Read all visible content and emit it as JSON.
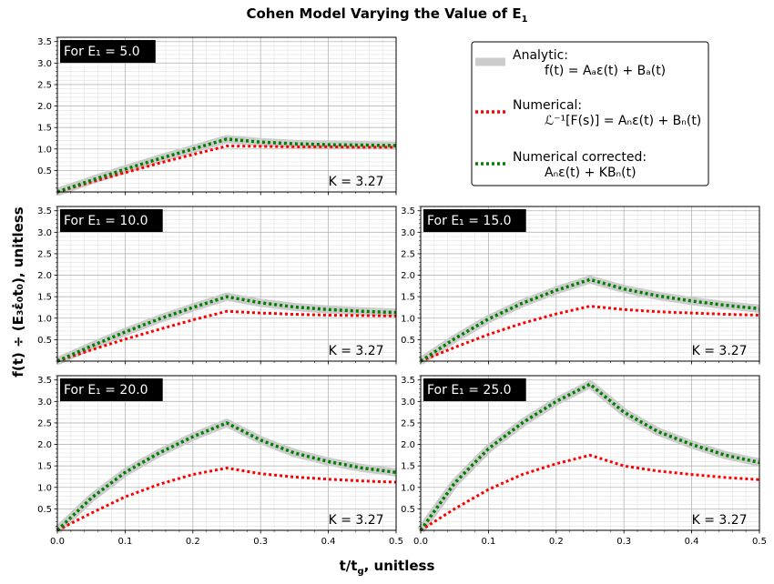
{
  "title": {
    "main": "Cohen Model Varying the Value of E",
    "sub": "1"
  },
  "xlabel": {
    "a": "t/t",
    "sub": "g",
    "b": ", unitless"
  },
  "ylabel": {
    "text": "f(t) ÷ (E₃ε̇₀t₀), unitless"
  },
  "legend": [
    {
      "name": "Analytic:",
      "formula": "f(t) = Aₐε(t) + Bₐ(t)",
      "color": "#cccccc",
      "style": "solid"
    },
    {
      "name": "Numerical:",
      "formula": "ℒ⁻¹[F(s)] = Aₙε(t) + Bₙ(t)",
      "color": "#ff0000",
      "style": "dotted"
    },
    {
      "name": "Numerical corrected:",
      "formula": "Aₙε(t) + KBₙ(t)",
      "color": "#008000",
      "style": "dotted"
    }
  ],
  "chart_data": [
    {
      "type": "line",
      "panel_label": "For E₁ = 5.0",
      "k_label": "K = 3.27",
      "x": [
        0,
        0.25,
        0.5
      ],
      "xlim": [
        0,
        0.5
      ],
      "ylim": [
        0,
        3.6
      ],
      "xticks": [
        "0.0",
        "0.1",
        "0.2",
        "0.3",
        "0.4",
        "0.5"
      ],
      "yticks": [
        "0.5",
        "1.0",
        "1.5",
        "2.0",
        "2.5",
        "3.0",
        "3.5"
      ],
      "series": [
        {
          "name": "Analytic",
          "x": [
            0,
            0.05,
            0.1,
            0.15,
            0.2,
            0.25,
            0.3,
            0.35,
            0.4,
            0.45,
            0.5
          ],
          "values": [
            0,
            0.27,
            0.53,
            0.77,
            1.0,
            1.23,
            1.16,
            1.12,
            1.1,
            1.09,
            1.08
          ]
        },
        {
          "name": "Numerical",
          "x": [
            0,
            0.05,
            0.1,
            0.15,
            0.2,
            0.25,
            0.3,
            0.35,
            0.4,
            0.45,
            0.5
          ],
          "values": [
            0,
            0.23,
            0.45,
            0.67,
            0.87,
            1.07,
            1.06,
            1.05,
            1.05,
            1.04,
            1.04
          ]
        },
        {
          "name": "Numerical corrected",
          "x": [
            0,
            0.05,
            0.1,
            0.15,
            0.2,
            0.25,
            0.3,
            0.35,
            0.4,
            0.45,
            0.5
          ],
          "values": [
            0,
            0.27,
            0.53,
            0.77,
            1.0,
            1.23,
            1.16,
            1.12,
            1.1,
            1.09,
            1.08
          ]
        }
      ]
    },
    {
      "type": "line",
      "panel_label": "For E₁ = 10.0",
      "k_label": "K = 3.27",
      "xlim": [
        0,
        0.5
      ],
      "ylim": [
        0,
        3.6
      ],
      "xticks": [
        "0.0",
        "0.1",
        "0.2",
        "0.3",
        "0.4",
        "0.5"
      ],
      "yticks": [
        "0.5",
        "1.0",
        "1.5",
        "2.0",
        "2.5",
        "3.0",
        "3.5"
      ],
      "series": [
        {
          "name": "Analytic",
          "x": [
            0,
            0.05,
            0.1,
            0.15,
            0.2,
            0.25,
            0.3,
            0.35,
            0.4,
            0.45,
            0.5
          ],
          "values": [
            0,
            0.35,
            0.68,
            0.98,
            1.25,
            1.5,
            1.36,
            1.26,
            1.2,
            1.16,
            1.13
          ]
        },
        {
          "name": "Numerical",
          "x": [
            0,
            0.05,
            0.1,
            0.15,
            0.2,
            0.25,
            0.3,
            0.35,
            0.4,
            0.45,
            0.5
          ],
          "values": [
            0,
            0.26,
            0.51,
            0.74,
            0.96,
            1.16,
            1.12,
            1.09,
            1.07,
            1.06,
            1.05
          ]
        },
        {
          "name": "Numerical corrected",
          "x": [
            0,
            0.05,
            0.1,
            0.15,
            0.2,
            0.25,
            0.3,
            0.35,
            0.4,
            0.45,
            0.5
          ],
          "values": [
            0,
            0.35,
            0.68,
            0.98,
            1.25,
            1.5,
            1.36,
            1.26,
            1.2,
            1.16,
            1.13
          ]
        }
      ]
    },
    {
      "type": "line",
      "panel_label": "For E₁ = 15.0",
      "k_label": "K = 3.27",
      "xlim": [
        0,
        0.5
      ],
      "ylim": [
        0,
        3.6
      ],
      "xticks": [
        "0.0",
        "0.1",
        "0.2",
        "0.3",
        "0.4",
        "0.5"
      ],
      "yticks": [
        "0.5",
        "1.0",
        "1.5",
        "2.0",
        "2.5",
        "3.0",
        "3.5"
      ],
      "series": [
        {
          "name": "Analytic",
          "x": [
            0,
            0.05,
            0.1,
            0.15,
            0.2,
            0.25,
            0.3,
            0.35,
            0.4,
            0.45,
            0.5
          ],
          "values": [
            0,
            0.52,
            0.98,
            1.35,
            1.65,
            1.9,
            1.68,
            1.52,
            1.4,
            1.3,
            1.22
          ]
        },
        {
          "name": "Numerical",
          "x": [
            0,
            0.05,
            0.1,
            0.15,
            0.2,
            0.25,
            0.3,
            0.35,
            0.4,
            0.45,
            0.5
          ],
          "values": [
            0,
            0.32,
            0.62,
            0.88,
            1.1,
            1.28,
            1.2,
            1.15,
            1.12,
            1.09,
            1.07
          ]
        },
        {
          "name": "Numerical corrected",
          "x": [
            0,
            0.05,
            0.1,
            0.15,
            0.2,
            0.25,
            0.3,
            0.35,
            0.4,
            0.45,
            0.5
          ],
          "values": [
            0,
            0.52,
            0.98,
            1.35,
            1.65,
            1.9,
            1.68,
            1.52,
            1.4,
            1.3,
            1.22
          ]
        }
      ]
    },
    {
      "type": "line",
      "panel_label": "For E₁ = 20.0",
      "k_label": "K = 3.27",
      "xlim": [
        0,
        0.5
      ],
      "ylim": [
        0,
        3.6
      ],
      "xticks": [
        "0.0",
        "0.1",
        "0.2",
        "0.3",
        "0.4",
        "0.5"
      ],
      "yticks": [
        "0.5",
        "1.0",
        "1.5",
        "2.0",
        "2.5",
        "3.0",
        "3.5"
      ],
      "series": [
        {
          "name": "Analytic",
          "x": [
            0,
            0.05,
            0.1,
            0.15,
            0.2,
            0.25,
            0.3,
            0.35,
            0.4,
            0.45,
            0.5
          ],
          "values": [
            0,
            0.75,
            1.35,
            1.8,
            2.18,
            2.5,
            2.1,
            1.8,
            1.6,
            1.45,
            1.35
          ]
        },
        {
          "name": "Numerical",
          "x": [
            0,
            0.05,
            0.1,
            0.15,
            0.2,
            0.25,
            0.3,
            0.35,
            0.4,
            0.45,
            0.5
          ],
          "values": [
            0,
            0.4,
            0.78,
            1.07,
            1.3,
            1.45,
            1.32,
            1.24,
            1.19,
            1.15,
            1.12
          ]
        },
        {
          "name": "Numerical corrected",
          "x": [
            0,
            0.05,
            0.1,
            0.15,
            0.2,
            0.25,
            0.3,
            0.35,
            0.4,
            0.45,
            0.5
          ],
          "values": [
            0,
            0.75,
            1.35,
            1.8,
            2.18,
            2.5,
            2.1,
            1.8,
            1.6,
            1.45,
            1.35
          ]
        }
      ]
    },
    {
      "type": "line",
      "panel_label": "For E₁ = 25.0",
      "k_label": "K = 3.27",
      "xlim": [
        0,
        0.5
      ],
      "ylim": [
        0,
        3.6
      ],
      "xticks": [
        "0.0",
        "0.1",
        "0.2",
        "0.3",
        "0.4",
        "0.5"
      ],
      "yticks": [
        "0.5",
        "1.0",
        "1.5",
        "2.0",
        "2.5",
        "3.0",
        "3.5"
      ],
      "series": [
        {
          "name": "Analytic",
          "x": [
            0,
            0.05,
            0.1,
            0.15,
            0.2,
            0.25,
            0.3,
            0.35,
            0.4,
            0.45,
            0.5
          ],
          "values": [
            0,
            1.1,
            1.9,
            2.5,
            3.0,
            3.4,
            2.75,
            2.3,
            2.0,
            1.75,
            1.58
          ]
        },
        {
          "name": "Numerical",
          "x": [
            0,
            0.05,
            0.1,
            0.15,
            0.2,
            0.25,
            0.3,
            0.35,
            0.4,
            0.45,
            0.5
          ],
          "values": [
            0,
            0.5,
            0.95,
            1.3,
            1.55,
            1.75,
            1.5,
            1.38,
            1.3,
            1.23,
            1.18
          ]
        },
        {
          "name": "Numerical corrected",
          "x": [
            0,
            0.05,
            0.1,
            0.15,
            0.2,
            0.25,
            0.3,
            0.35,
            0.4,
            0.45,
            0.5
          ],
          "values": [
            0,
            1.1,
            1.9,
            2.5,
            3.0,
            3.4,
            2.75,
            2.3,
            2.0,
            1.75,
            1.58
          ]
        }
      ]
    }
  ]
}
